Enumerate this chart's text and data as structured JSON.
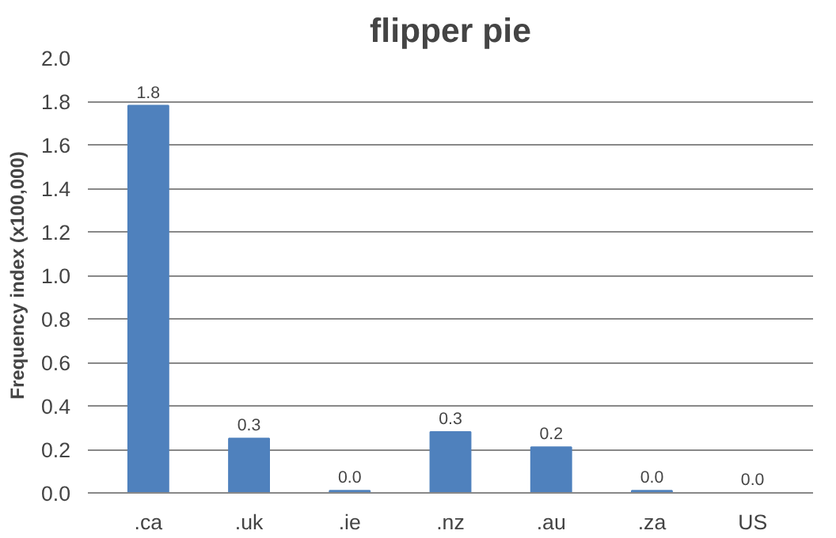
{
  "chart_data": {
    "type": "bar",
    "title": "flipper pie",
    "ylabel": "Frequency index (x100,000)",
    "categories": [
      ".ca",
      ".uk",
      ".ie",
      ".nz",
      ".au",
      ".za",
      "US"
    ],
    "values": [
      1.78,
      0.25,
      0.01,
      0.28,
      0.21,
      0.01,
      0
    ],
    "value_labels": [
      "1.8",
      "0.3",
      "0.0",
      "0.3",
      "0.2",
      "0.0",
      "0.0"
    ],
    "color": "#4f81bd",
    "ylim": [
      0,
      2.0
    ],
    "yticks": [
      {
        "value": 0,
        "label": "0.0"
      },
      {
        "value": 0.2,
        "label": "0.2"
      },
      {
        "value": 0.4,
        "label": "0.4"
      },
      {
        "value": 0.6,
        "label": "0.6"
      },
      {
        "value": 0.8,
        "label": "0.8"
      },
      {
        "value": 1.0,
        "label": "1.0"
      },
      {
        "value": 1.2,
        "label": "1.2"
      },
      {
        "value": 1.4,
        "label": "1.4"
      },
      {
        "value": 1.6,
        "label": "1.6"
      },
      {
        "value": 1.8,
        "label": "1.8"
      },
      {
        "value": 2.0,
        "label": "2.0"
      }
    ],
    "grid": "y"
  }
}
